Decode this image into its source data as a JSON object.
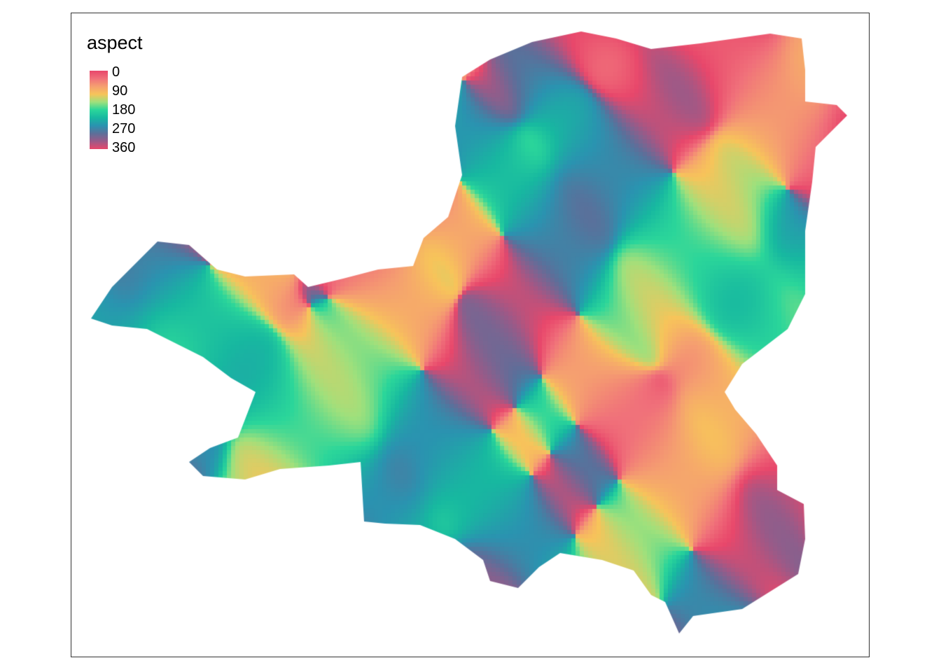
{
  "map": {
    "legend": {
      "title": "aspect",
      "ticks": [
        "0",
        "90",
        "180",
        "270",
        "360"
      ],
      "tick_values": [
        0,
        90,
        180,
        270,
        360
      ],
      "palette": [
        "#e8476b",
        "#f0707a",
        "#f59f70",
        "#f7c45a",
        "#9fe07c",
        "#2bd69a",
        "#17b8a0",
        "#2a93b0",
        "#5c6f9a",
        "#9a5a88",
        "#e8476b"
      ]
    },
    "raster": {
      "variable": "aspect",
      "unit_range": [
        0,
        360
      ],
      "no_data_color": "#ffffff"
    }
  }
}
